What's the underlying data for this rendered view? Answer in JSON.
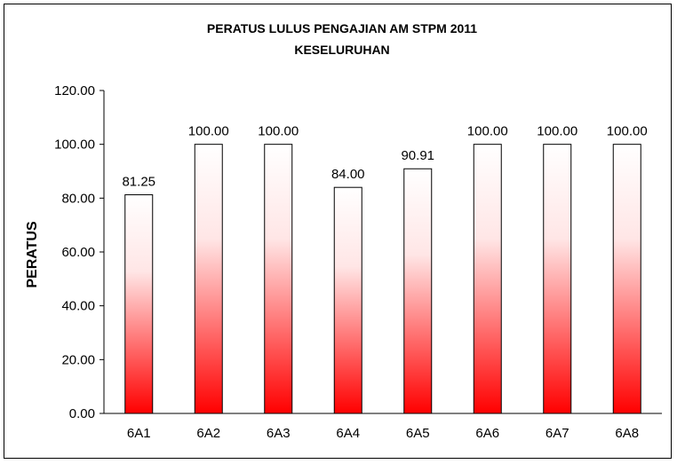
{
  "chart_data": {
    "type": "bar",
    "title": "PERATUS LULUS PENGAJIAN AM STPM 2011",
    "subtitle": "KESELURUHAN",
    "xlabel": "",
    "ylabel": "PERATUS",
    "categories": [
      "6A1",
      "6A2",
      "6A3",
      "6A4",
      "6A5",
      "6A6",
      "6A7",
      "6A8"
    ],
    "values": [
      81.25,
      100.0,
      100.0,
      84.0,
      90.91,
      100.0,
      100.0,
      100.0
    ],
    "data_labels": [
      "81.25",
      "100.00",
      "100.00",
      "84.00",
      "90.91",
      "100.00",
      "100.00",
      "100.00"
    ],
    "ylim": [
      0,
      120
    ],
    "yticks": [
      0,
      20,
      40,
      60,
      80,
      100,
      120
    ],
    "ytick_labels": [
      "0.00",
      "20.00",
      "40.00",
      "60.00",
      "80.00",
      "100.00",
      "120.00"
    ],
    "grid": false,
    "legend": "none",
    "colors": {
      "bar_top": "#ffffff",
      "bar_bottom": "#ff0000",
      "bar_outline": "#000000",
      "axis": "#000000"
    }
  }
}
